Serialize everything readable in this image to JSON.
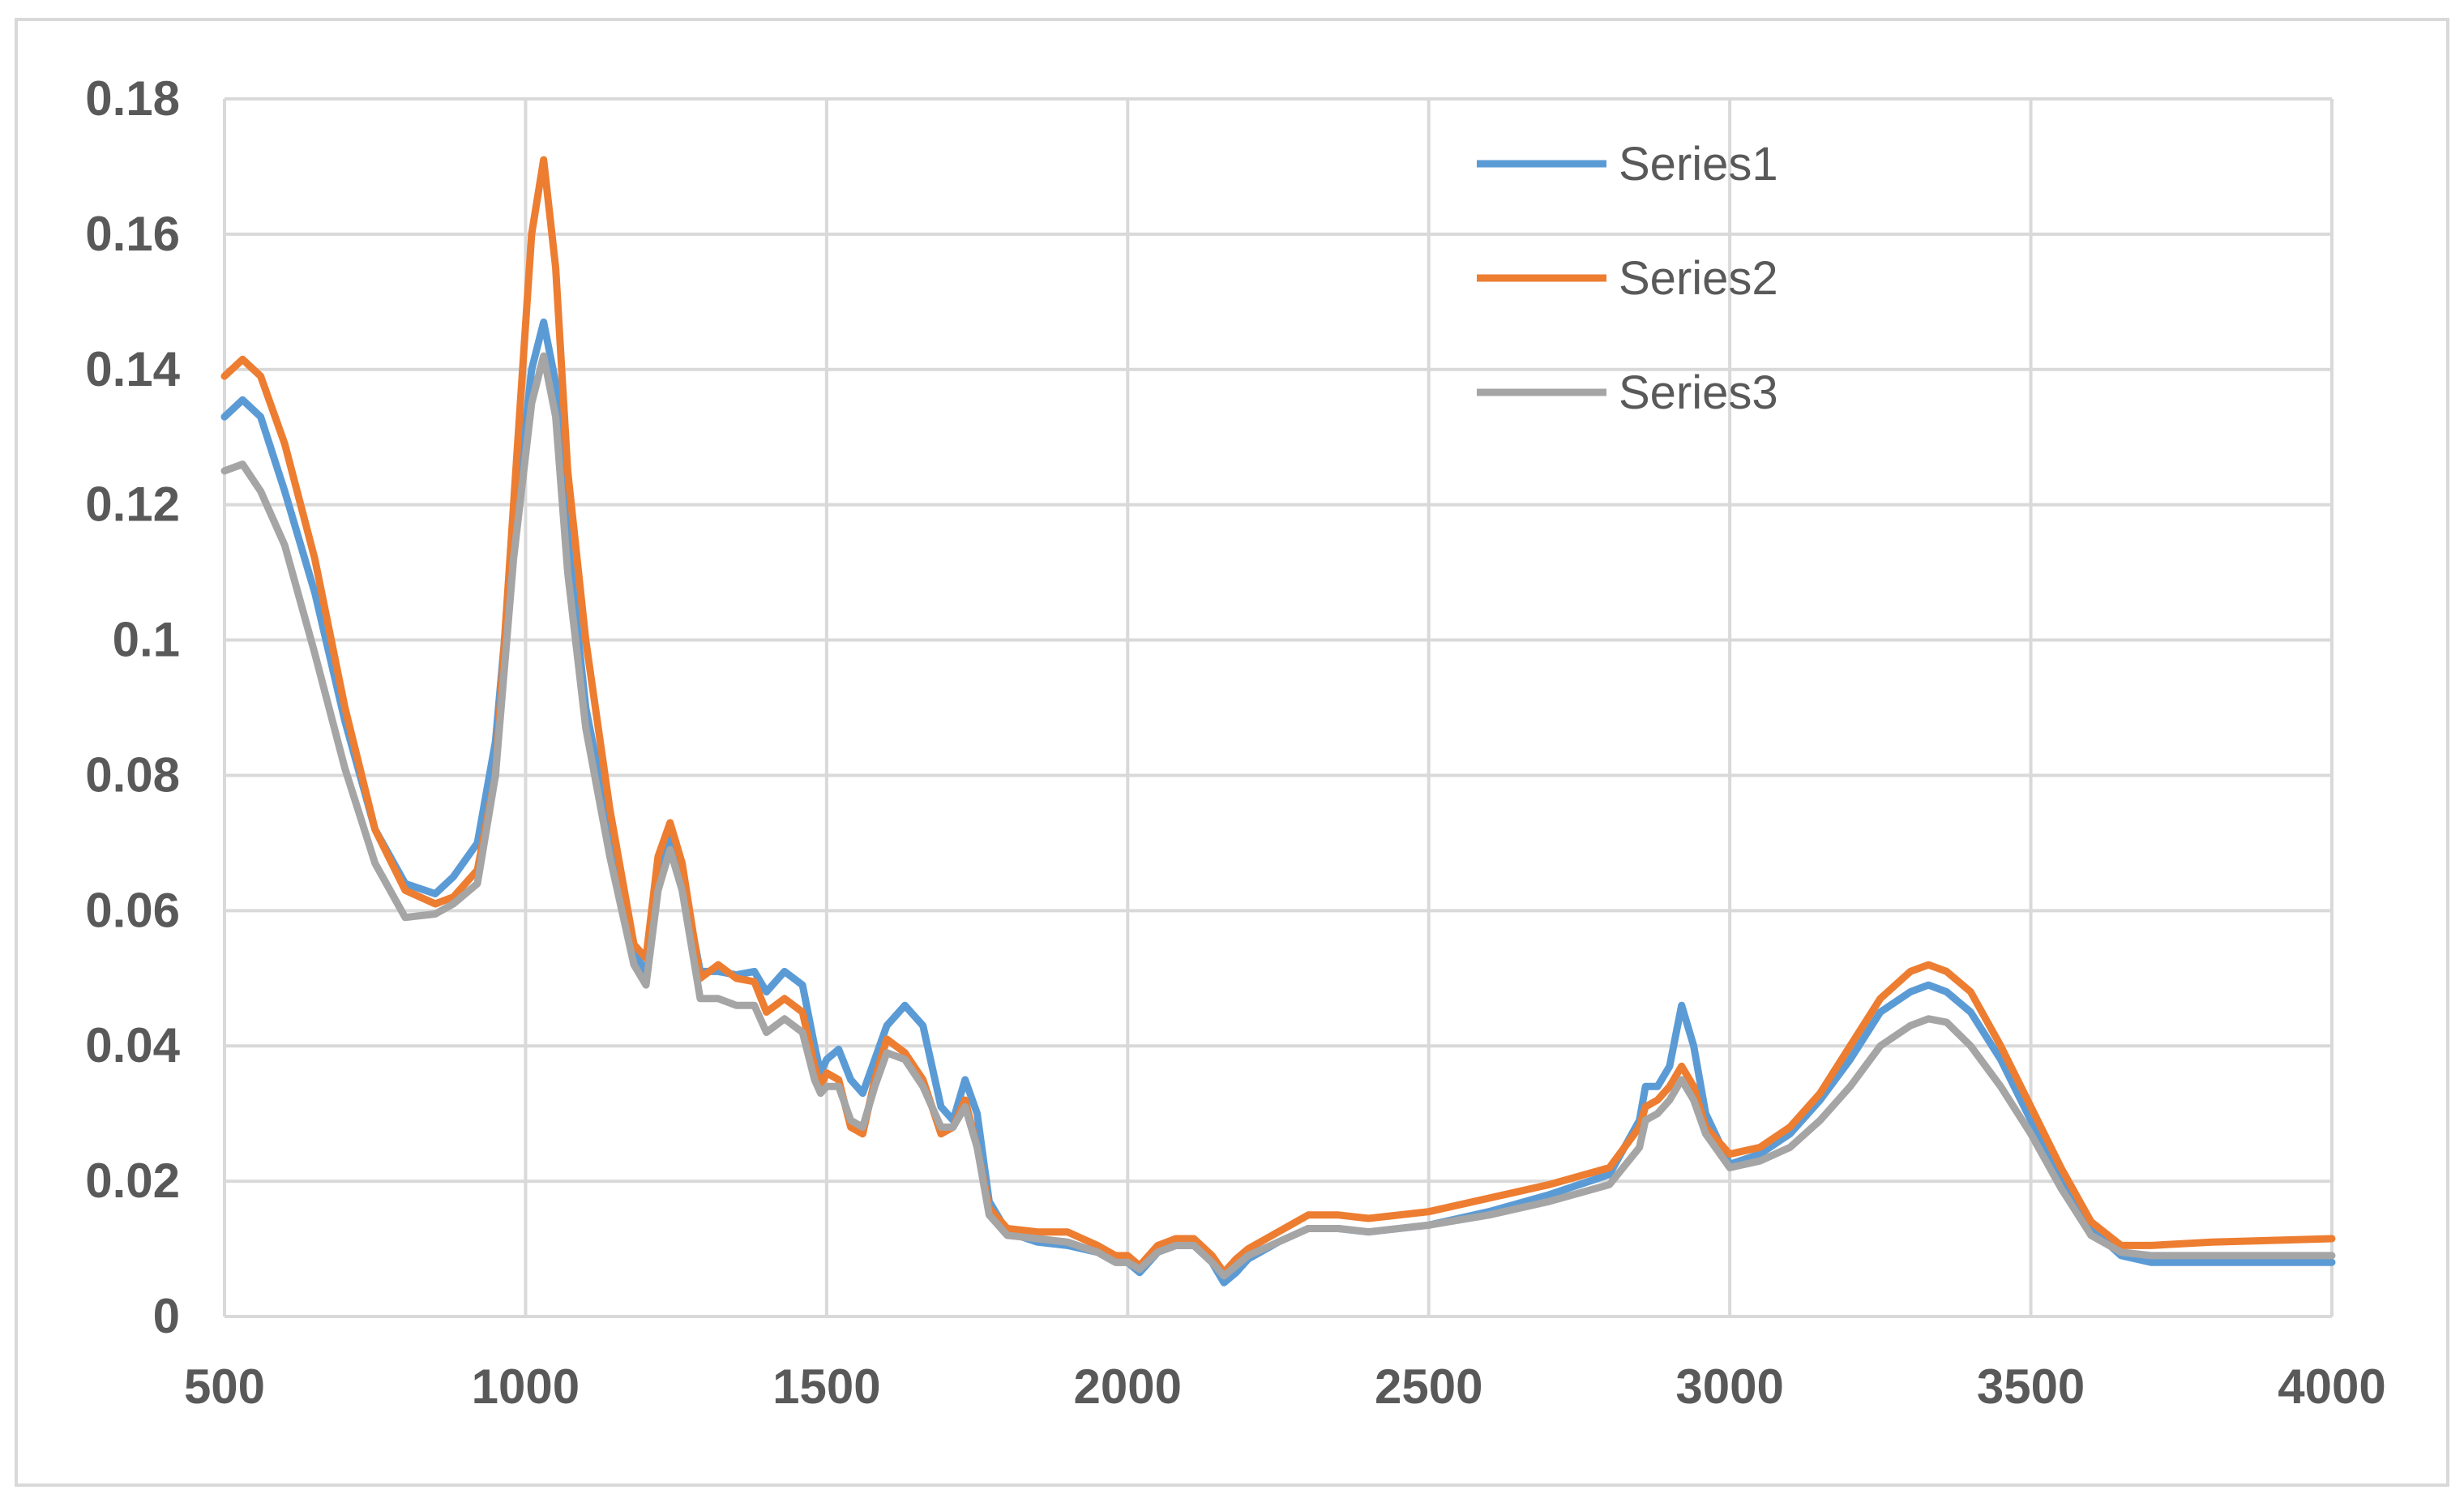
{
  "chart_data": {
    "type": "line",
    "title": "",
    "xlabel": "",
    "ylabel": "",
    "xlim": [
      500,
      4000
    ],
    "ylim": [
      0,
      0.18
    ],
    "x_ticks": [
      "500",
      "1000",
      "1500",
      "2000",
      "2500",
      "3000",
      "3500",
      "4000"
    ],
    "y_ticks": [
      "0",
      "0.02",
      "0.04",
      "0.06",
      "0.08",
      "0.1",
      "0.12",
      "0.14",
      "0.16",
      "0.18"
    ],
    "grid": true,
    "legend_position": "top-right",
    "series": [
      {
        "name": "Series1",
        "color": "#5b9bd5",
        "points": [
          [
            500,
            0.133
          ],
          [
            530,
            0.1355
          ],
          [
            560,
            0.133
          ],
          [
            600,
            0.122
          ],
          [
            650,
            0.107
          ],
          [
            700,
            0.088
          ],
          [
            750,
            0.072
          ],
          [
            800,
            0.064
          ],
          [
            850,
            0.0625
          ],
          [
            880,
            0.065
          ],
          [
            920,
            0.07
          ],
          [
            950,
            0.085
          ],
          [
            980,
            0.115
          ],
          [
            1010,
            0.14
          ],
          [
            1030,
            0.147
          ],
          [
            1050,
            0.138
          ],
          [
            1070,
            0.115
          ],
          [
            1100,
            0.09
          ],
          [
            1140,
            0.072
          ],
          [
            1180,
            0.055
          ],
          [
            1200,
            0.05
          ],
          [
            1220,
            0.065
          ],
          [
            1240,
            0.071
          ],
          [
            1260,
            0.065
          ],
          [
            1290,
            0.051
          ],
          [
            1320,
            0.051
          ],
          [
            1350,
            0.0505
          ],
          [
            1380,
            0.051
          ],
          [
            1400,
            0.048
          ],
          [
            1430,
            0.051
          ],
          [
            1460,
            0.049
          ],
          [
            1480,
            0.04
          ],
          [
            1490,
            0.036
          ],
          [
            1500,
            0.038
          ],
          [
            1520,
            0.0395
          ],
          [
            1540,
            0.035
          ],
          [
            1560,
            0.033
          ],
          [
            1580,
            0.038
          ],
          [
            1600,
            0.043
          ],
          [
            1630,
            0.046
          ],
          [
            1660,
            0.043
          ],
          [
            1690,
            0.031
          ],
          [
            1710,
            0.029
          ],
          [
            1730,
            0.035
          ],
          [
            1750,
            0.03
          ],
          [
            1770,
            0.017
          ],
          [
            1800,
            0.0125
          ],
          [
            1850,
            0.011
          ],
          [
            1900,
            0.0105
          ],
          [
            1950,
            0.0095
          ],
          [
            1980,
            0.008
          ],
          [
            2000,
            0.008
          ],
          [
            2020,
            0.0065
          ],
          [
            2050,
            0.0095
          ],
          [
            2080,
            0.0105
          ],
          [
            2110,
            0.0105
          ],
          [
            2140,
            0.008
          ],
          [
            2160,
            0.005
          ],
          [
            2180,
            0.0065
          ],
          [
            2200,
            0.0085
          ],
          [
            2250,
            0.011
          ],
          [
            2300,
            0.013
          ],
          [
            2350,
            0.013
          ],
          [
            2400,
            0.0125
          ],
          [
            2500,
            0.0135
          ],
          [
            2600,
            0.0155
          ],
          [
            2700,
            0.018
          ],
          [
            2800,
            0.021
          ],
          [
            2850,
            0.029
          ],
          [
            2860,
            0.034
          ],
          [
            2880,
            0.034
          ],
          [
            2900,
            0.037
          ],
          [
            2920,
            0.046
          ],
          [
            2940,
            0.04
          ],
          [
            2960,
            0.03
          ],
          [
            3000,
            0.0225
          ],
          [
            3050,
            0.024
          ],
          [
            3100,
            0.027
          ],
          [
            3150,
            0.032
          ],
          [
            3200,
            0.038
          ],
          [
            3250,
            0.045
          ],
          [
            3300,
            0.048
          ],
          [
            3330,
            0.049
          ],
          [
            3360,
            0.048
          ],
          [
            3400,
            0.045
          ],
          [
            3450,
            0.038
          ],
          [
            3500,
            0.029
          ],
          [
            3550,
            0.021
          ],
          [
            3600,
            0.013
          ],
          [
            3650,
            0.009
          ],
          [
            3700,
            0.008
          ],
          [
            3800,
            0.008
          ],
          [
            4000,
            0.008
          ]
        ]
      },
      {
        "name": "Series2",
        "color": "#ed7d31",
        "points": [
          [
            500,
            0.139
          ],
          [
            530,
            0.1415
          ],
          [
            560,
            0.139
          ],
          [
            600,
            0.129
          ],
          [
            650,
            0.112
          ],
          [
            700,
            0.09
          ],
          [
            750,
            0.072
          ],
          [
            800,
            0.063
          ],
          [
            850,
            0.061
          ],
          [
            880,
            0.062
          ],
          [
            920,
            0.066
          ],
          [
            950,
            0.08
          ],
          [
            980,
            0.12
          ],
          [
            1010,
            0.16
          ],
          [
            1030,
            0.171
          ],
          [
            1050,
            0.155
          ],
          [
            1070,
            0.125
          ],
          [
            1100,
            0.1
          ],
          [
            1140,
            0.075
          ],
          [
            1180,
            0.055
          ],
          [
            1200,
            0.053
          ],
          [
            1220,
            0.068
          ],
          [
            1240,
            0.073
          ],
          [
            1260,
            0.067
          ],
          [
            1290,
            0.05
          ],
          [
            1320,
            0.052
          ],
          [
            1350,
            0.05
          ],
          [
            1380,
            0.0495
          ],
          [
            1400,
            0.045
          ],
          [
            1430,
            0.047
          ],
          [
            1460,
            0.045
          ],
          [
            1480,
            0.037
          ],
          [
            1490,
            0.034
          ],
          [
            1500,
            0.036
          ],
          [
            1520,
            0.035
          ],
          [
            1540,
            0.028
          ],
          [
            1560,
            0.027
          ],
          [
            1580,
            0.035
          ],
          [
            1600,
            0.041
          ],
          [
            1630,
            0.039
          ],
          [
            1660,
            0.035
          ],
          [
            1690,
            0.027
          ],
          [
            1710,
            0.028
          ],
          [
            1730,
            0.032
          ],
          [
            1750,
            0.025
          ],
          [
            1770,
            0.016
          ],
          [
            1800,
            0.013
          ],
          [
            1850,
            0.0125
          ],
          [
            1900,
            0.0125
          ],
          [
            1950,
            0.0105
          ],
          [
            1980,
            0.009
          ],
          [
            2000,
            0.009
          ],
          [
            2020,
            0.0075
          ],
          [
            2050,
            0.0105
          ],
          [
            2080,
            0.0115
          ],
          [
            2110,
            0.0115
          ],
          [
            2140,
            0.009
          ],
          [
            2160,
            0.0065
          ],
          [
            2180,
            0.0085
          ],
          [
            2200,
            0.01
          ],
          [
            2250,
            0.0125
          ],
          [
            2300,
            0.015
          ],
          [
            2350,
            0.015
          ],
          [
            2400,
            0.0145
          ],
          [
            2500,
            0.0155
          ],
          [
            2600,
            0.0175
          ],
          [
            2700,
            0.0195
          ],
          [
            2800,
            0.022
          ],
          [
            2850,
            0.028
          ],
          [
            2860,
            0.031
          ],
          [
            2880,
            0.032
          ],
          [
            2900,
            0.034
          ],
          [
            2920,
            0.037
          ],
          [
            2940,
            0.034
          ],
          [
            2960,
            0.028
          ],
          [
            3000,
            0.024
          ],
          [
            3050,
            0.025
          ],
          [
            3100,
            0.028
          ],
          [
            3150,
            0.033
          ],
          [
            3200,
            0.04
          ],
          [
            3250,
            0.047
          ],
          [
            3300,
            0.051
          ],
          [
            3330,
            0.052
          ],
          [
            3360,
            0.051
          ],
          [
            3400,
            0.048
          ],
          [
            3450,
            0.04
          ],
          [
            3500,
            0.031
          ],
          [
            3550,
            0.022
          ],
          [
            3600,
            0.014
          ],
          [
            3650,
            0.0105
          ],
          [
            3700,
            0.0105
          ],
          [
            3800,
            0.011
          ],
          [
            4000,
            0.0115
          ]
        ]
      },
      {
        "name": "Series3",
        "color": "#a5a5a5",
        "points": [
          [
            500,
            0.125
          ],
          [
            530,
            0.126
          ],
          [
            560,
            0.122
          ],
          [
            600,
            0.114
          ],
          [
            650,
            0.098
          ],
          [
            700,
            0.081
          ],
          [
            750,
            0.067
          ],
          [
            800,
            0.059
          ],
          [
            850,
            0.0595
          ],
          [
            880,
            0.061
          ],
          [
            920,
            0.064
          ],
          [
            950,
            0.08
          ],
          [
            980,
            0.112
          ],
          [
            1010,
            0.135
          ],
          [
            1030,
            0.142
          ],
          [
            1050,
            0.133
          ],
          [
            1070,
            0.11
          ],
          [
            1100,
            0.087
          ],
          [
            1140,
            0.068
          ],
          [
            1180,
            0.052
          ],
          [
            1200,
            0.049
          ],
          [
            1220,
            0.063
          ],
          [
            1240,
            0.069
          ],
          [
            1260,
            0.063
          ],
          [
            1290,
            0.047
          ],
          [
            1320,
            0.047
          ],
          [
            1350,
            0.046
          ],
          [
            1380,
            0.046
          ],
          [
            1400,
            0.042
          ],
          [
            1430,
            0.044
          ],
          [
            1460,
            0.042
          ],
          [
            1480,
            0.035
          ],
          [
            1490,
            0.033
          ],
          [
            1500,
            0.034
          ],
          [
            1520,
            0.034
          ],
          [
            1540,
            0.029
          ],
          [
            1560,
            0.028
          ],
          [
            1580,
            0.034
          ],
          [
            1600,
            0.039
          ],
          [
            1630,
            0.038
          ],
          [
            1660,
            0.034
          ],
          [
            1690,
            0.028
          ],
          [
            1710,
            0.028
          ],
          [
            1730,
            0.031
          ],
          [
            1750,
            0.025
          ],
          [
            1770,
            0.015
          ],
          [
            1800,
            0.012
          ],
          [
            1850,
            0.0115
          ],
          [
            1900,
            0.011
          ],
          [
            1950,
            0.0095
          ],
          [
            1980,
            0.008
          ],
          [
            2000,
            0.008
          ],
          [
            2020,
            0.007
          ],
          [
            2050,
            0.0095
          ],
          [
            2080,
            0.0105
          ],
          [
            2110,
            0.0105
          ],
          [
            2140,
            0.008
          ],
          [
            2160,
            0.006
          ],
          [
            2180,
            0.0075
          ],
          [
            2200,
            0.009
          ],
          [
            2250,
            0.011
          ],
          [
            2300,
            0.013
          ],
          [
            2350,
            0.013
          ],
          [
            2400,
            0.0125
          ],
          [
            2500,
            0.0135
          ],
          [
            2600,
            0.015
          ],
          [
            2700,
            0.017
          ],
          [
            2800,
            0.0195
          ],
          [
            2850,
            0.025
          ],
          [
            2860,
            0.029
          ],
          [
            2880,
            0.03
          ],
          [
            2900,
            0.032
          ],
          [
            2920,
            0.035
          ],
          [
            2940,
            0.032
          ],
          [
            2960,
            0.027
          ],
          [
            3000,
            0.022
          ],
          [
            3050,
            0.023
          ],
          [
            3100,
            0.025
          ],
          [
            3150,
            0.029
          ],
          [
            3200,
            0.034
          ],
          [
            3250,
            0.04
          ],
          [
            3300,
            0.043
          ],
          [
            3330,
            0.044
          ],
          [
            3360,
            0.0435
          ],
          [
            3400,
            0.04
          ],
          [
            3450,
            0.034
          ],
          [
            3500,
            0.027
          ],
          [
            3550,
            0.019
          ],
          [
            3600,
            0.012
          ],
          [
            3650,
            0.0095
          ],
          [
            3700,
            0.009
          ],
          [
            3800,
            0.009
          ],
          [
            4000,
            0.009
          ]
        ]
      }
    ]
  }
}
